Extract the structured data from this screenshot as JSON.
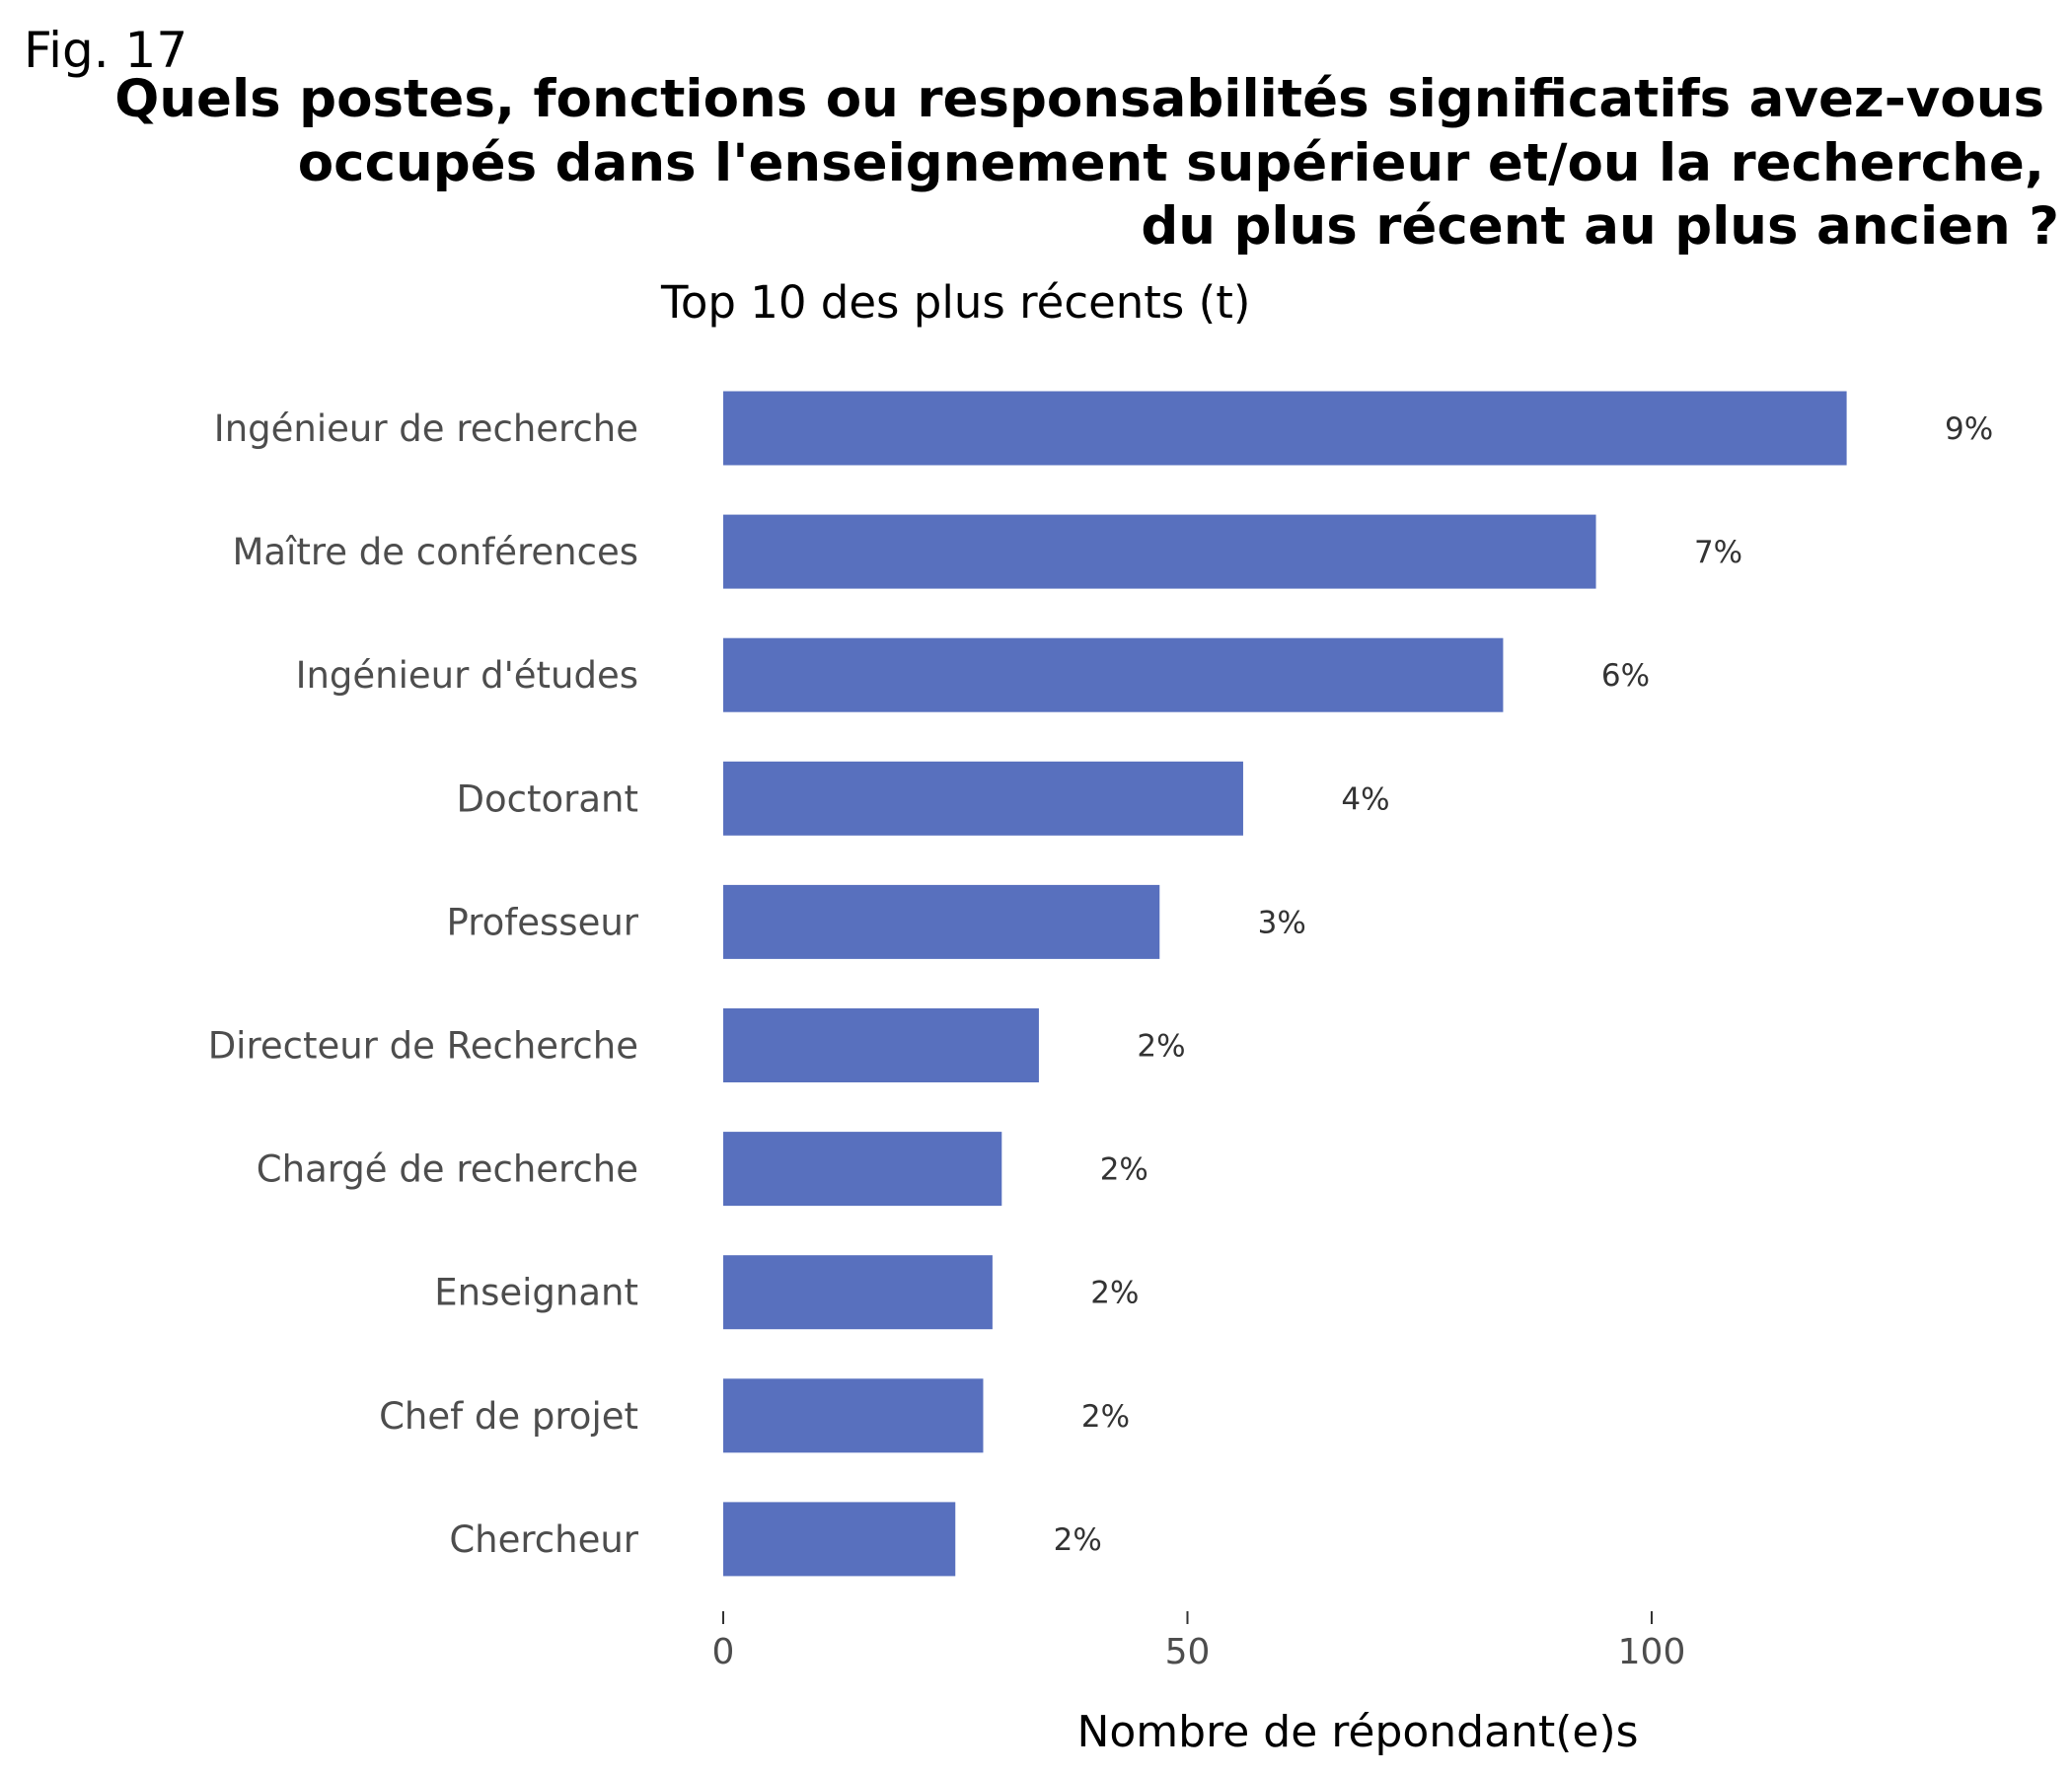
{
  "figure_label": "Fig. 17",
  "chart_data": {
    "type": "bar",
    "orientation": "horizontal",
    "title_lines": [
      "Quels postes, fonctions ou responsabilités significatifs avez-vous",
      "occupés dans l'enseignement supérieur et/ou la recherche,",
      "du plus récent au plus ancien ?"
    ],
    "subtitle": "Top 10 des plus récents (t)",
    "xlabel": "Nombre de répondant(e)s",
    "ylabel": "",
    "categories": [
      "Ingénieur de recherche",
      "Maître de conférences",
      "Ingénieur d'études",
      "Doctorant",
      "Professeur",
      "Directeur de Recherche",
      "Chargé de recherche",
      "Enseignant",
      "Chef de projet",
      "Chercheur"
    ],
    "values": [
      121,
      94,
      84,
      56,
      47,
      34,
      30,
      29,
      28,
      25
    ],
    "value_labels": [
      "9%",
      "7%",
      "6%",
      "4%",
      "3%",
      "2%",
      "2%",
      "2%",
      "2%",
      "2%"
    ],
    "xticks": [
      0,
      50,
      100
    ],
    "xlim": [
      0,
      135
    ],
    "grid": false,
    "legend": "none",
    "bar_color": "#5870be"
  }
}
